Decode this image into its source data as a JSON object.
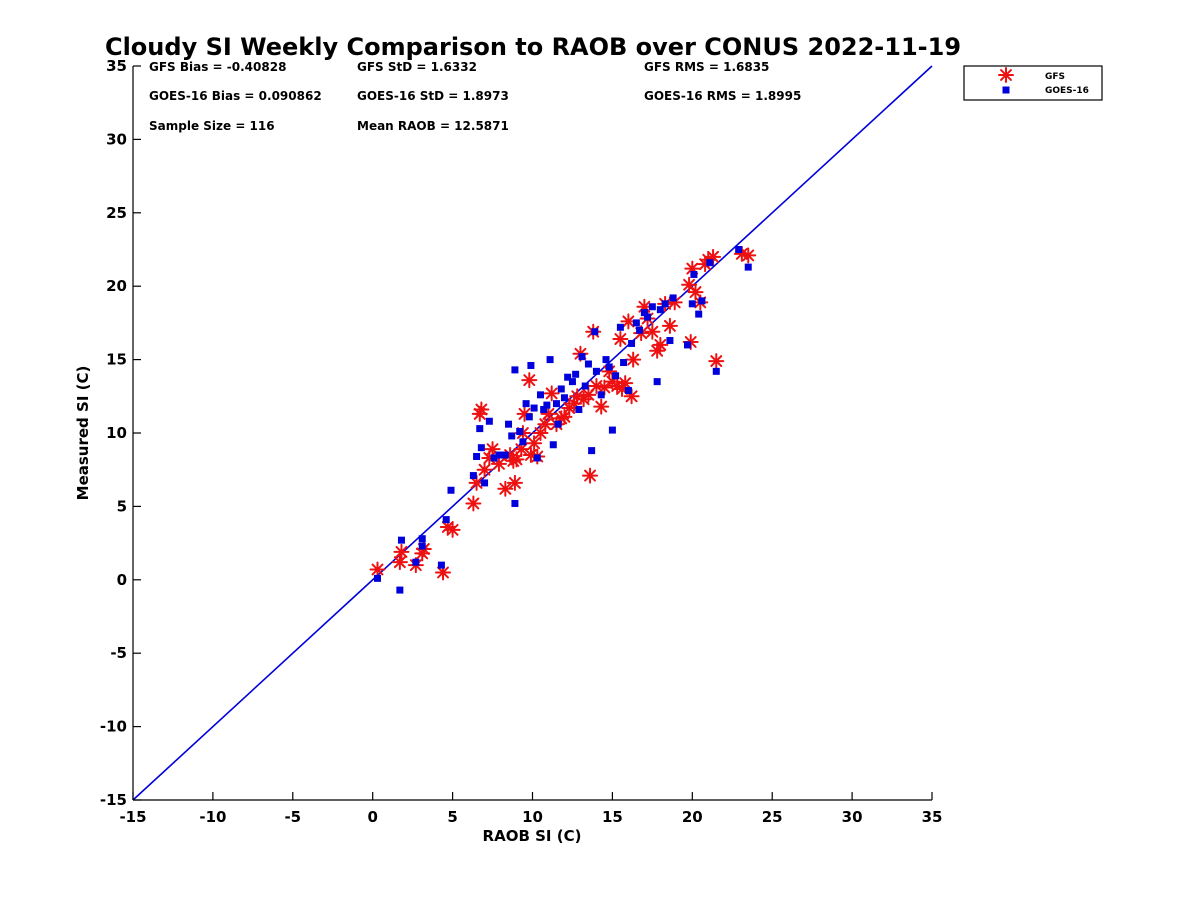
{
  "chart_data": {
    "type": "scatter",
    "title": "Cloudy SI Weekly Comparison to RAOB over CONUS 2022-11-19",
    "xlabel": "RAOB SI (C)",
    "ylabel": "Measured SI (C)",
    "xlim": [
      -15,
      35
    ],
    "ylim": [
      -15,
      35
    ],
    "xticks": [
      "-15",
      "-10",
      "-5",
      "0",
      "5",
      "10",
      "15",
      "20",
      "25",
      "30",
      "35"
    ],
    "yticks": [
      "-15",
      "-10",
      "-5",
      "0",
      "5",
      "10",
      "15",
      "20",
      "25",
      "30",
      "35"
    ],
    "grid": false,
    "legend_position": "top-right-outside",
    "stats": {
      "gfs_bias": "GFS Bias = -0.40828",
      "gfs_std": "GFS StD = 1.6332",
      "gfs_rms": "GFS RMS = 1.6835",
      "goes_bias": "GOES-16 Bias = 0.090862",
      "goes_std": "GOES-16 StD = 1.8973",
      "goes_rms": "GOES-16 RMS = 1.8995",
      "sample_size": "Sample Size = 116",
      "mean_raob": "Mean RAOB = 12.5871"
    },
    "reference_line": {
      "name": "1:1 line",
      "from": [
        -15,
        -15
      ],
      "to": [
        35,
        35
      ],
      "color": "#0000dd"
    },
    "series": [
      {
        "name": "GFS",
        "marker": "asterisk",
        "color": "#ee1111",
        "points": [
          [
            0.3,
            0.7
          ],
          [
            1.7,
            1.2
          ],
          [
            1.8,
            1.9
          ],
          [
            2.7,
            1.0
          ],
          [
            3.1,
            1.8
          ],
          [
            3.2,
            2.1
          ],
          [
            4.4,
            0.5
          ],
          [
            4.7,
            3.6
          ],
          [
            5.0,
            3.4
          ],
          [
            6.3,
            5.2
          ],
          [
            6.5,
            6.6
          ],
          [
            6.7,
            11.3
          ],
          [
            6.8,
            11.6
          ],
          [
            7.0,
            7.5
          ],
          [
            7.3,
            8.3
          ],
          [
            7.5,
            8.9
          ],
          [
            7.9,
            7.9
          ],
          [
            8.3,
            6.2
          ],
          [
            8.6,
            8.5
          ],
          [
            8.8,
            8.1
          ],
          [
            8.9,
            6.6
          ],
          [
            9.0,
            8.2
          ],
          [
            9.3,
            8.9
          ],
          [
            9.4,
            10.0
          ],
          [
            9.5,
            11.3
          ],
          [
            9.8,
            13.6
          ],
          [
            9.9,
            8.5
          ],
          [
            10.1,
            9.3
          ],
          [
            10.3,
            8.4
          ],
          [
            10.5,
            10.0
          ],
          [
            10.8,
            10.6
          ],
          [
            11.0,
            11.3
          ],
          [
            11.2,
            12.7
          ],
          [
            11.5,
            10.6
          ],
          [
            11.8,
            11.0
          ],
          [
            12.0,
            11.1
          ],
          [
            12.3,
            11.7
          ],
          [
            12.6,
            12.0
          ],
          [
            12.8,
            12.5
          ],
          [
            13.0,
            15.4
          ],
          [
            13.2,
            12.3
          ],
          [
            13.5,
            12.6
          ],
          [
            13.6,
            7.1
          ],
          [
            13.8,
            16.9
          ],
          [
            14.0,
            13.2
          ],
          [
            14.3,
            11.8
          ],
          [
            14.5,
            13.1
          ],
          [
            14.8,
            14.2
          ],
          [
            15.0,
            13.5
          ],
          [
            15.3,
            13.2
          ],
          [
            15.5,
            16.4
          ],
          [
            15.6,
            13.0
          ],
          [
            15.8,
            13.4
          ],
          [
            16.0,
            17.6
          ],
          [
            16.2,
            12.5
          ],
          [
            16.3,
            15.0
          ],
          [
            16.8,
            16.8
          ],
          [
            17.0,
            18.6
          ],
          [
            17.2,
            17.8
          ],
          [
            17.5,
            16.9
          ],
          [
            17.8,
            15.6
          ],
          [
            18.0,
            16.0
          ],
          [
            18.3,
            18.8
          ],
          [
            18.6,
            17.3
          ],
          [
            18.9,
            18.9
          ],
          [
            19.8,
            20.1
          ],
          [
            19.9,
            16.2
          ],
          [
            20.0,
            21.2
          ],
          [
            20.2,
            19.6
          ],
          [
            20.5,
            18.9
          ],
          [
            20.8,
            21.5
          ],
          [
            21.0,
            21.8
          ],
          [
            21.3,
            22.0
          ],
          [
            21.5,
            14.9
          ],
          [
            23.1,
            22.2
          ],
          [
            23.5,
            22.1
          ]
        ]
      },
      {
        "name": "GOES-16",
        "marker": "square",
        "color": "#0000dd",
        "points": [
          [
            0.3,
            0.1
          ],
          [
            1.7,
            -0.7
          ],
          [
            1.8,
            2.7
          ],
          [
            2.7,
            1.2
          ],
          [
            3.1,
            2.8
          ],
          [
            3.1,
            2.3
          ],
          [
            4.3,
            1.0
          ],
          [
            4.6,
            4.1
          ],
          [
            4.9,
            6.1
          ],
          [
            6.3,
            7.1
          ],
          [
            6.5,
            8.4
          ],
          [
            6.7,
            10.3
          ],
          [
            6.8,
            9.0
          ],
          [
            7.0,
            6.6
          ],
          [
            7.3,
            10.8
          ],
          [
            7.6,
            8.3
          ],
          [
            7.9,
            8.5
          ],
          [
            8.3,
            8.5
          ],
          [
            8.5,
            10.6
          ],
          [
            8.7,
            9.8
          ],
          [
            8.9,
            14.3
          ],
          [
            8.9,
            5.2
          ],
          [
            9.2,
            10.1
          ],
          [
            9.4,
            9.4
          ],
          [
            9.6,
            12.0
          ],
          [
            9.8,
            11.1
          ],
          [
            9.9,
            14.6
          ],
          [
            10.1,
            11.7
          ],
          [
            10.3,
            8.3
          ],
          [
            10.5,
            12.6
          ],
          [
            10.7,
            11.6
          ],
          [
            10.9,
            11.9
          ],
          [
            11.1,
            15.0
          ],
          [
            11.3,
            9.2
          ],
          [
            11.5,
            12.0
          ],
          [
            11.6,
            10.6
          ],
          [
            11.8,
            13.0
          ],
          [
            12.0,
            12.4
          ],
          [
            12.2,
            13.8
          ],
          [
            12.5,
            13.5
          ],
          [
            12.7,
            14.0
          ],
          [
            12.9,
            11.6
          ],
          [
            13.1,
            15.2
          ],
          [
            13.3,
            13.2
          ],
          [
            13.5,
            14.7
          ],
          [
            13.7,
            8.8
          ],
          [
            13.9,
            16.9
          ],
          [
            14.0,
            14.2
          ],
          [
            14.3,
            12.6
          ],
          [
            14.6,
            15.0
          ],
          [
            14.8,
            14.5
          ],
          [
            15.0,
            10.2
          ],
          [
            15.2,
            13.9
          ],
          [
            15.5,
            17.2
          ],
          [
            15.7,
            14.8
          ],
          [
            16.0,
            12.9
          ],
          [
            16.2,
            16.1
          ],
          [
            16.5,
            17.5
          ],
          [
            16.7,
            17.0
          ],
          [
            17.0,
            18.2
          ],
          [
            17.2,
            17.9
          ],
          [
            17.5,
            18.6
          ],
          [
            17.8,
            13.5
          ],
          [
            18.0,
            18.4
          ],
          [
            18.3,
            18.8
          ],
          [
            18.6,
            16.3
          ],
          [
            18.8,
            19.2
          ],
          [
            19.7,
            16.0
          ],
          [
            20.0,
            18.8
          ],
          [
            20.1,
            20.8
          ],
          [
            20.4,
            18.1
          ],
          [
            20.6,
            19.0
          ],
          [
            21.1,
            21.6
          ],
          [
            21.5,
            14.2
          ],
          [
            22.9,
            22.5
          ],
          [
            23.5,
            21.3
          ]
        ]
      }
    ]
  }
}
